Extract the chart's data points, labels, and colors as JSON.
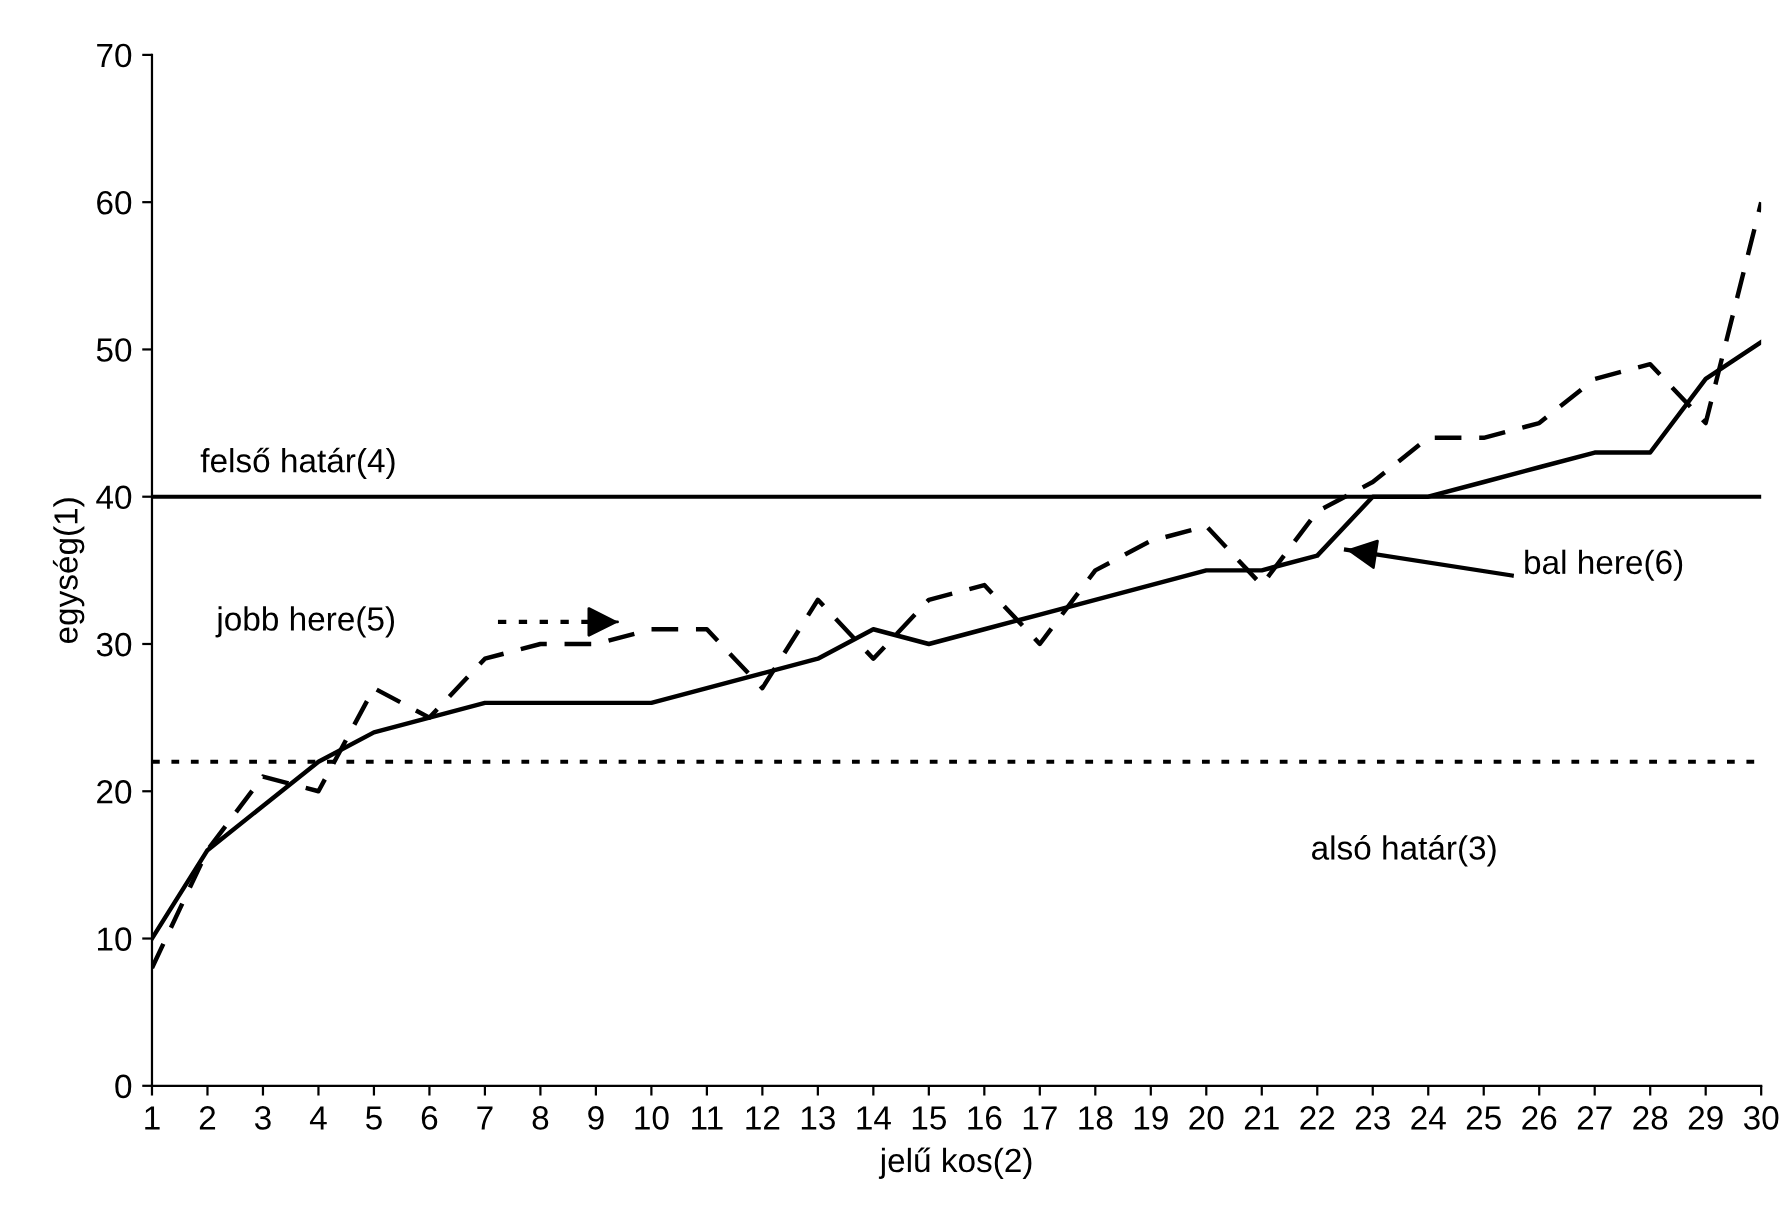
{
  "chart_data": {
    "type": "line",
    "xlabel": "jelű kos(2)",
    "ylabel": "egység(1)",
    "x": [
      1,
      2,
      3,
      4,
      5,
      6,
      7,
      8,
      9,
      10,
      11,
      12,
      13,
      14,
      15,
      16,
      17,
      18,
      19,
      20,
      21,
      22,
      23,
      24,
      25,
      26,
      27,
      28,
      29,
      30
    ],
    "series": [
      {
        "color": "#000000",
        "line_style": "dashed",
        "values": [
          8,
          16,
          21,
          20,
          27,
          25,
          29,
          30,
          30,
          31,
          31,
          27,
          33,
          29,
          33,
          34,
          30,
          35,
          37,
          38,
          34,
          39,
          41,
          44,
          44,
          45,
          48,
          49,
          45,
          60
        ]
      },
      {
        "color": "#000000",
        "line_style": "solid",
        "values": [
          10,
          16,
          19,
          22,
          24,
          25,
          26,
          26,
          26,
          26,
          27,
          28,
          29,
          31,
          30,
          31,
          32,
          33,
          34,
          35,
          35,
          36,
          40,
          40,
          41,
          42,
          43,
          43,
          48,
          50.5
        ]
      }
    ],
    "xlim": [
      1,
      30
    ],
    "xticks": [
      1,
      2,
      3,
      4,
      5,
      6,
      7,
      8,
      9,
      10,
      11,
      12,
      13,
      14,
      15,
      16,
      17,
      18,
      19,
      20,
      21,
      22,
      23,
      24,
      25,
      26,
      27,
      28,
      29,
      30
    ],
    "ylim": [
      0,
      70
    ],
    "yticks": [
      0,
      10,
      20,
      30,
      40,
      50,
      60,
      70
    ],
    "ref_lines": [
      {
        "axis": "y",
        "value": 40,
        "label": "felső határ(4)",
        "color": "#000000",
        "line_style": "solid"
      },
      {
        "axis": "y",
        "value": 22,
        "label": "alsó határ(3)",
        "color": "#000000",
        "line_style": "dotted"
      }
    ],
    "annotations": [
      "jobb here(5)",
      "bal here(6)"
    ],
    "grid": false,
    "legend": false
  }
}
